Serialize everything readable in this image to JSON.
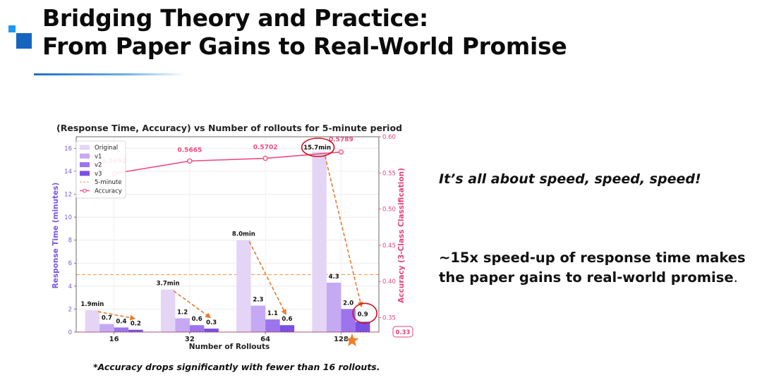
{
  "slide": {
    "title_line1": "Bridging Theory and Practice:",
    "title_line2": "From Paper Gains to Real-World Promise",
    "side_text_1": "It’s all about speed, speed, speed!",
    "side_text_2": "~15x speed-up of response time makes the paper gains to real-world promise",
    "side_text_2_end": ".",
    "footnote": "*Accuracy drops significantly with fewer than 16 rollouts."
  },
  "colors": {
    "original": "#e4d5f7",
    "v1": "#c6a9f3",
    "v2": "#9c74ee",
    "v3": "#7a4fe3",
    "threshold": "#f4a261",
    "accuracy": "#ee4a7c",
    "arrow": "#e87a2e",
    "highlight_circle": "#d0101e",
    "star": "#ef7f2f",
    "left_axis": "#7b55e0",
    "right_axis": "#e0457b"
  },
  "chart_data": {
    "type": "bar",
    "title": "(Response Time, Accuracy) vs Number of rollouts for 5-minute period",
    "xlabel": "Number of Rollouts",
    "ylabel": "Response Time (minutes)",
    "y2label": "Accuracy (3-Class Classification)",
    "categories": [
      "16",
      "32",
      "64",
      "128"
    ],
    "ylim": [
      0,
      17
    ],
    "y2lim": [
      0.33,
      0.6
    ],
    "yticks": [
      0,
      2,
      4,
      6,
      8,
      10,
      12,
      14,
      16
    ],
    "y2ticks": [
      0.35,
      0.4,
      0.45,
      0.5,
      0.55,
      0.6
    ],
    "y2_bottom_label": "0.33",
    "grid": true,
    "legend_position": "upper-left",
    "series": [
      {
        "name": "Original",
        "values": [
          1.9,
          3.7,
          8.0,
          15.7
        ],
        "labels": [
          "1.9min",
          "3.7min",
          "8.0min",
          "15.7min"
        ]
      },
      {
        "name": "v1",
        "values": [
          0.7,
          1.2,
          2.3,
          4.3
        ],
        "labels": [
          "0.7",
          "1.2",
          "2.3",
          "4.3"
        ]
      },
      {
        "name": "v2",
        "values": [
          0.4,
          0.6,
          1.1,
          2.0
        ],
        "labels": [
          "0.4",
          "0.6",
          "1.1",
          "2.0"
        ]
      },
      {
        "name": "v3",
        "values": [
          0.2,
          0.3,
          0.6,
          0.9
        ],
        "labels": [
          "0.2",
          "0.3",
          "0.6",
          "0.9"
        ]
      }
    ],
    "threshold": {
      "name": "5-minute",
      "value": 5
    },
    "accuracy": {
      "name": "Accuracy",
      "values": [
        0.5492,
        0.5665,
        0.5702,
        0.5789
      ],
      "labels": [
        "0.5492",
        "0.5665",
        "0.5702",
        "0.5789"
      ]
    }
  }
}
